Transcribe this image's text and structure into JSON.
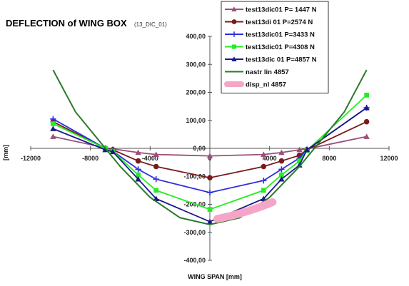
{
  "chart_data": {
    "type": "line",
    "title": "DEFLECTION of WING BOX",
    "subtitle": "(13_DIC_01)",
    "xlabel": "WING SPAN [mm]",
    "ylabel": "[mm]",
    "xlim": [
      -12000,
      12000
    ],
    "ylim": [
      -400,
      400
    ],
    "x_ticks": [
      "-12000",
      "-8000",
      "-4000",
      "0",
      "4000",
      "8000",
      "12000"
    ],
    "y_ticks": [
      "400,00",
      "300,00",
      "200,00",
      "100,00",
      "0,00",
      "-100,00",
      "-200,00",
      "-300,00",
      "-400,00"
    ],
    "legend_position": "top-right",
    "series": [
      {
        "name": "test13dic01 P= 1447 N",
        "color": "#9b4f7a",
        "marker": "triangle",
        "x": [
          -10500,
          -7000,
          -6500,
          -4800,
          -3600,
          0,
          3600,
          4800,
          6000,
          6500,
          10500
        ],
        "y": [
          42,
          2,
          -2,
          -15,
          -22,
          -27,
          -22,
          -15,
          -5,
          -2,
          42
        ]
      },
      {
        "name": "test13di 01 P=2574 N",
        "color": "#7a1a1a",
        "marker": "circle",
        "x": [
          -10500,
          -7000,
          -6500,
          -4800,
          -3600,
          0,
          3600,
          4800,
          6000,
          6500,
          10500
        ],
        "y": [
          95,
          0,
          -5,
          -45,
          -65,
          -105,
          -65,
          -45,
          -25,
          -5,
          95
        ]
      },
      {
        "name": "test13dic01 P=3433 N",
        "color": "#3030e0",
        "marker": "plus",
        "x": [
          -10500,
          -7000,
          -6500,
          -4800,
          -3600,
          0,
          3600,
          4800,
          6000,
          6500,
          10500
        ],
        "y": [
          105,
          0,
          -10,
          -75,
          -110,
          -158,
          -115,
          -75,
          -35,
          -5,
          145
        ]
      },
      {
        "name": "test13dic01 P=4308 N",
        "color": "#22ee22",
        "marker": "square",
        "x": [
          -10500,
          -7000,
          -6500,
          -4800,
          -3600,
          0,
          3600,
          4800,
          6000,
          6500,
          10500
        ],
        "y": [
          88,
          0,
          -10,
          -95,
          -150,
          -218,
          -150,
          -95,
          -45,
          -8,
          190
        ]
      },
      {
        "name": "test13dic 01 P=4857 N",
        "color": "#1a1a8a",
        "marker": "triangle",
        "x": [
          -10500,
          -7000,
          -6500,
          -4800,
          -3600,
          0,
          3600,
          4800,
          6000,
          6500,
          10500
        ],
        "y": [
          70,
          -5,
          -12,
          -110,
          -180,
          -262,
          -180,
          -110,
          -60,
          -5,
          145
        ]
      },
      {
        "name": "nastr lin 4857",
        "color": "#2a7a2a",
        "marker": "none",
        "x": [
          -10500,
          -9000,
          -7000,
          -6000,
          -4000,
          -2000,
          0,
          2000,
          4000,
          6000,
          7000,
          9000,
          10500
        ],
        "y": [
          280,
          130,
          0,
          -65,
          -175,
          -248,
          -272,
          -248,
          -175,
          -65,
          0,
          130,
          280
        ]
      },
      {
        "name": "disp_nl 4857",
        "color": "#f5a6c8",
        "marker": "band",
        "x": [
          500,
          1500,
          2500,
          3500,
          4200
        ],
        "y": [
          -252,
          -240,
          -225,
          -207,
          -192
        ]
      }
    ]
  }
}
